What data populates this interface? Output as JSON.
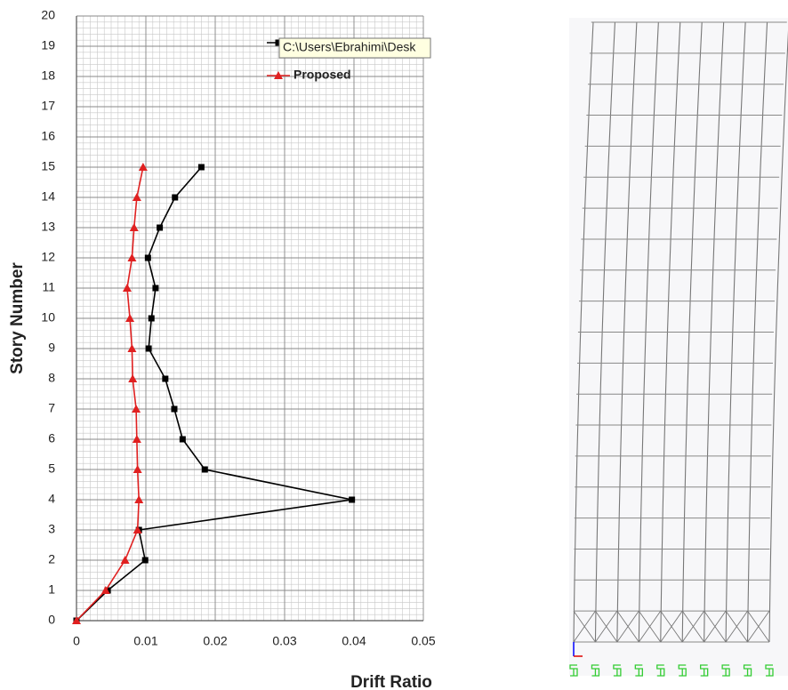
{
  "chart_data": {
    "type": "line",
    "x_label": "Drift Ratio",
    "y_label": "Story Number",
    "y": [
      0,
      1,
      2,
      3,
      4,
      5,
      6,
      7,
      8,
      9,
      10,
      11,
      12,
      13,
      14,
      15
    ],
    "series": [
      {
        "color": "#000000",
        "marker": "square",
        "values": [
          0,
          0.0045,
          0.0099,
          0.009,
          0.0397,
          0.0185,
          0.0153,
          0.0141,
          0.0128,
          0.0104,
          0.0108,
          0.0114,
          0.0103,
          0.012,
          0.0142,
          0.018
        ]
      },
      {
        "name": "Proposed",
        "color": "#e02020",
        "marker": "triangle",
        "values": [
          0,
          0.0042,
          0.007,
          0.0088,
          0.009,
          0.0088,
          0.0087,
          0.0086,
          0.0081,
          0.008,
          0.0077,
          0.0073,
          0.008,
          0.0083,
          0.0087,
          0.0096
        ]
      }
    ],
    "xlim": [
      0,
      0.05
    ],
    "xticks": [
      0,
      0.01,
      0.02,
      0.03,
      0.04,
      0.05
    ],
    "ylim": [
      0,
      20
    ],
    "yticks": [
      0,
      1,
      2,
      3,
      4,
      5,
      6,
      7,
      8,
      9,
      10,
      11,
      12,
      13,
      14,
      15,
      16,
      17,
      18,
      19,
      20
    ],
    "grid": true,
    "tooltip": "C:\\Users\\Ebrahimi\\Desk"
  }
}
